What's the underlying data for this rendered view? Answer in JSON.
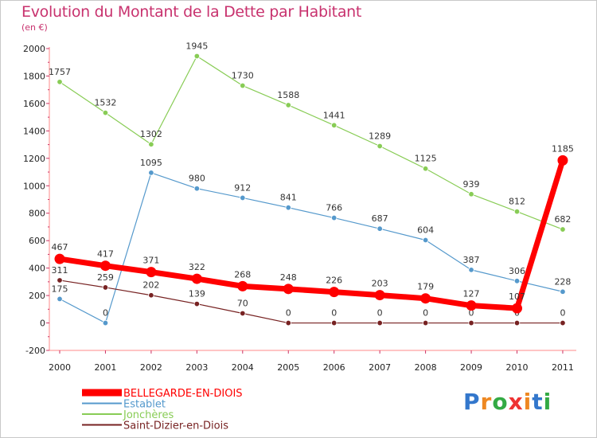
{
  "chart_data": {
    "type": "line",
    "title": "Evolution du Montant de la Dette par Habitant",
    "subtitle": "(en €)",
    "x": [
      "2000",
      "2001",
      "2002",
      "2003",
      "2004",
      "2005",
      "2006",
      "2007",
      "2008",
      "2009",
      "2010",
      "2011"
    ],
    "ylim": [
      -200,
      2000
    ],
    "yticks": [
      -200,
      0,
      200,
      400,
      600,
      800,
      1000,
      1200,
      1400,
      1600,
      1800,
      2000
    ],
    "grid": false,
    "legend_position": "bottom-left",
    "series": [
      {
        "name": "Jonchères",
        "color": "#88cc55",
        "values": [
          1757,
          1532,
          1302,
          1945,
          1730,
          1588,
          1441,
          1289,
          1125,
          939,
          812,
          682
        ]
      },
      {
        "name": "Establet",
        "color": "#5599cc",
        "values": [
          175,
          0,
          1095,
          980,
          912,
          841,
          766,
          687,
          604,
          387,
          306,
          228
        ]
      },
      {
        "name": "Saint-Dizier-en-Diois",
        "color": "#772222",
        "values": [
          311,
          259,
          202,
          139,
          70,
          0,
          0,
          0,
          0,
          0,
          0,
          0
        ]
      },
      {
        "name": "BELLEGARDE-EN-DIOIS",
        "color": "#ff0000",
        "values": [
          467,
          417,
          371,
          322,
          268,
          248,
          226,
          203,
          179,
          127,
          107,
          1185
        ]
      }
    ],
    "legend_order": [
      "BELLEGARDE-EN-DIOIS",
      "Establet",
      "Jonchères",
      "Saint-Dizier-en-Diois"
    ]
  },
  "logo": {
    "letters": [
      "P",
      "r",
      "o",
      "x",
      "i",
      "t",
      "i"
    ],
    "colors": [
      "#3377cc",
      "#ee8822",
      "#33aa44",
      "#ee3333",
      "#ee8822",
      "#3377cc",
      "#33aa44"
    ]
  }
}
